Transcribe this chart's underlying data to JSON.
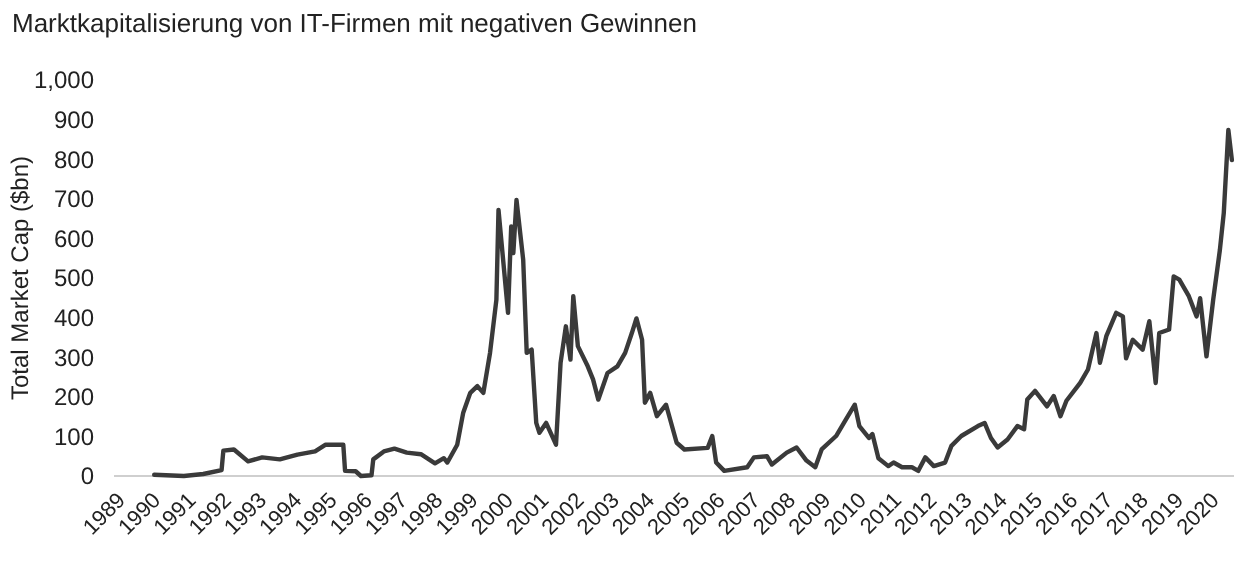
{
  "chart_data": {
    "type": "line",
    "title": "Marktkapitalisierung von IT-Firmen mit negativen Gewinnen",
    "ylabel": "Total Market Cap ($bn)",
    "xlim": [
      1988.8,
      2020.55
    ],
    "ylim": [
      0,
      1000
    ],
    "xticks": [
      1989,
      1990,
      1991,
      1992,
      1993,
      1994,
      1995,
      1996,
      1997,
      1998,
      1999,
      2000,
      2001,
      2002,
      2003,
      2004,
      2005,
      2006,
      2007,
      2008,
      2009,
      2010,
      2011,
      2012,
      2013,
      2014,
      2015,
      2016,
      2017,
      2018,
      2019,
      2020
    ],
    "yticks": [
      0,
      100,
      200,
      300,
      400,
      500,
      600,
      700,
      800,
      900,
      {
        "value": 1000,
        "label": "1,000"
      }
    ],
    "line_style": "solid",
    "series": [
      {
        "color": "#3a3a3a",
        "x": [
          1989.94,
          1990.78,
          1991.33,
          1991.85,
          1991.9,
          1992.2,
          1992.6,
          1993.0,
          1993.5,
          1994.0,
          1994.5,
          1994.8,
          1995.3,
          1995.35,
          1995.65,
          1995.8,
          1996.1,
          1996.15,
          1996.45,
          1996.75,
          1997.1,
          1997.5,
          1997.9,
          1998.15,
          1998.25,
          1998.53,
          1998.7,
          1998.9,
          1999.1,
          1999.27,
          1999.46,
          1999.64,
          1999.7,
          1999.97,
          2000.06,
          2000.12,
          2000.21,
          2000.4,
          2000.5,
          2000.64,
          2000.77,
          2000.86,
          2001.05,
          2001.33,
          2001.46,
          2001.61,
          2001.74,
          2001.82,
          2001.95,
          2002.23,
          2002.38,
          2002.53,
          2002.79,
          2003.07,
          2003.29,
          2003.48,
          2003.61,
          2003.77,
          2003.85,
          2004.0,
          2004.19,
          2004.45,
          2004.75,
          2004.97,
          2005.63,
          2005.76,
          2005.87,
          2006.1,
          2006.75,
          2006.94,
          2007.31,
          2007.45,
          2007.87,
          2008.15,
          2008.43,
          2008.68,
          2008.86,
          2009.27,
          2009.55,
          2009.8,
          2009.93,
          2010.2,
          2010.3,
          2010.47,
          2010.75,
          2010.9,
          2011.14,
          2011.42,
          2011.6,
          2011.8,
          2012.04,
          2012.36,
          2012.54,
          2012.82,
          2013.29,
          2013.48,
          2013.66,
          2013.85,
          2014.13,
          2014.41,
          2014.6,
          2014.69,
          2014.91,
          2015.25,
          2015.44,
          2015.63,
          2015.8,
          2016.19,
          2016.41,
          2016.65,
          2016.75,
          2016.93,
          2017.21,
          2017.4,
          2017.49,
          2017.68,
          2017.96,
          2018.15,
          2018.33,
          2018.43,
          2018.71,
          2018.84,
          2019.0,
          2019.27,
          2019.49,
          2019.59,
          2019.77,
          2019.96,
          2020.15,
          2020.26,
          2020.39,
          2020.49
        ],
        "values": [
          3,
          0,
          5,
          15,
          64,
          67,
          37,
          47,
          42,
          54,
          62,
          79,
          79,
          13,
          12,
          0,
          2,
          42,
          62,
          69,
          59,
          55,
          32,
          45,
          34,
          79,
          160,
          210,
          227,
          210,
          311,
          445,
          672,
          412,
          630,
          563,
          697,
          546,
          311,
          319,
          134,
          109,
          134,
          79,
          286,
          378,
          294,
          454,
          328,
          277,
          244,
          193,
          260,
          277,
          311,
          361,
          398,
          344,
          185,
          210,
          151,
          180,
          84,
          67,
          71,
          101,
          34,
          13,
          22,
          47,
          50,
          29,
          59,
          72,
          39,
          22,
          67,
          101,
          143,
          180,
          126,
          96,
          106,
          45,
          25,
          34,
          22,
          22,
          13,
          47,
          25,
          34,
          76,
          101,
          126,
          134,
          96,
          72,
          92,
          126,
          118,
          193,
          215,
          176,
          202,
          151,
          190,
          235,
          269,
          361,
          286,
          353,
          412,
          403,
          297,
          344,
          319,
          391,
          235,
          361,
          370,
          504,
          496,
          454,
          403,
          449,
          302,
          445,
          571,
          664,
          874,
          798
        ]
      }
    ]
  }
}
